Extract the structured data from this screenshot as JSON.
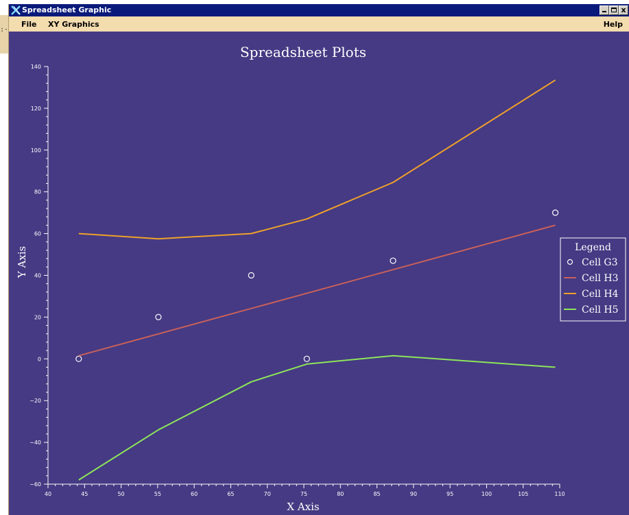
{
  "window": {
    "title": "Spreadsheet Graphic",
    "controls": [
      "minimize",
      "maximize",
      "close"
    ],
    "close_glyph": "x"
  },
  "menu": {
    "file": "File",
    "xy_graphics": "XY Graphics",
    "help": "Help"
  },
  "colors": {
    "plot_background": "#453a83",
    "axis": "#ffffff",
    "cell_g3": "#ffffff",
    "cell_h3": "#c9605a",
    "cell_h4": "#f0a12a",
    "cell_h5": "#8ee65a"
  },
  "chart_data": {
    "type": "line",
    "title": "Spreadsheet Plots",
    "xlabel": "X Axis",
    "ylabel": "Y Axis",
    "xlim": [
      40,
      110
    ],
    "ylim": [
      -60,
      140
    ],
    "x_ticks": [
      40,
      45,
      50,
      55,
      60,
      65,
      70,
      75,
      80,
      85,
      90,
      95,
      100,
      105,
      110
    ],
    "y_ticks": [
      -60,
      -40,
      -20,
      0,
      20,
      40,
      60,
      80,
      100,
      120,
      140
    ],
    "grid": false,
    "legend": {
      "title": "Legend",
      "placement": "right",
      "entries": [
        "Cell G3",
        "Cell H3",
        "Cell H4",
        "Cell H5"
      ]
    },
    "series": [
      {
        "name": "Cell G3",
        "style": "scatter",
        "color": "#ffffff",
        "x": [
          44.2,
          55.1,
          67.8,
          75.4,
          87.2,
          109.4
        ],
        "y": [
          0,
          20,
          40,
          0,
          47,
          70
        ]
      },
      {
        "name": "Cell H3",
        "style": "line",
        "color": "#c9605a",
        "x": [
          44.2,
          109.4
        ],
        "y": [
          1.5,
          64
        ]
      },
      {
        "name": "Cell H4",
        "style": "line",
        "color": "#f0a12a",
        "x": [
          44.2,
          55.1,
          67.8,
          75.4,
          87.2,
          109.4
        ],
        "y": [
          60,
          57.5,
          60,
          67,
          84.5,
          133.5
        ]
      },
      {
        "name": "Cell H5",
        "style": "line",
        "color": "#8ee65a",
        "x": [
          44.2,
          55.1,
          67.8,
          75.4,
          87.2,
          109.4
        ],
        "y": [
          -58,
          -34,
          -11,
          -2.5,
          1.5,
          -4
        ]
      }
    ]
  }
}
